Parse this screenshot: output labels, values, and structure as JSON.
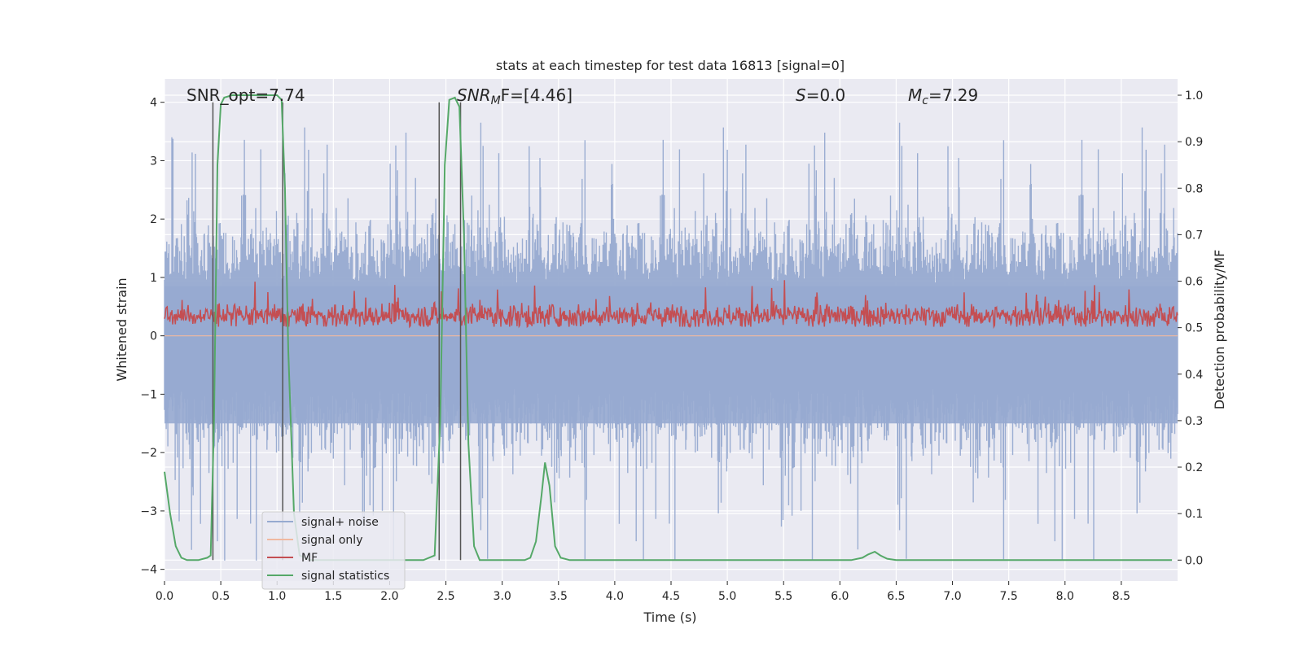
{
  "chart_data": {
    "type": "line",
    "title": "stats at each timestep for test data 16813 [signal=0]",
    "xlabel": "Time (s)",
    "ylabel": "Whitened strain",
    "ylabel_right": "Detection probability/MF",
    "xlim": [
      0,
      9.0
    ],
    "ylim": [
      -4.2,
      4.4
    ],
    "ylim_right": [
      -0.045,
      1.035
    ],
    "x_ticks": [
      "0.0",
      "0.5",
      "1.0",
      "1.5",
      "2.0",
      "2.5",
      "3.0",
      "3.5",
      "4.0",
      "4.5",
      "5.0",
      "5.5",
      "6.0",
      "6.5",
      "7.0",
      "7.5",
      "8.0",
      "8.5"
    ],
    "y_ticks": [
      "4",
      "3",
      "2",
      "1",
      "0",
      "−1",
      "−2",
      "−3",
      "−4"
    ],
    "y_ticks_right": [
      "1.0",
      "0.9",
      "0.8",
      "0.7",
      "0.6",
      "0.5",
      "0.4",
      "0.3",
      "0.2",
      "0.1",
      "0.0"
    ],
    "grid": true,
    "background": "#eaeaf2",
    "legend_position": "lower-left",
    "annotations": {
      "snr_opt": "SNR_opt=7.74",
      "snr_mf_base": "SNR",
      "snr_mf_sub": "M",
      "snr_mf_rest": "F=[4.46]",
      "s_var": "S",
      "s_rest": "=0.0",
      "mc_var": "M",
      "mc_sub": "c",
      "mc_rest": "=7.29"
    },
    "vertical_lines_x": [
      0.43,
      1.05,
      2.44,
      2.63
    ],
    "series": [
      {
        "name": "signal+ noise",
        "color": "#97aad0",
        "description_values": "noise band roughly -2.5..2.5, peaks up to ~3.6 and down to ~-3.9",
        "envelope": {
          "upper_typical": 1.6,
          "upper_max": 3.65,
          "lower_typical": -1.6,
          "lower_min": -3.85
        }
      },
      {
        "name": "signal only",
        "color": "#f0b8a0",
        "values_constant": 0.0
      },
      {
        "name": "MF",
        "color": "#c44e52",
        "axis": "right",
        "range": [
          0.5,
          0.6
        ],
        "peak": 0.62
      },
      {
        "name": "signal statistics",
        "color": "#55a868",
        "axis": "right",
        "x": [
          0.0,
          0.05,
          0.1,
          0.15,
          0.2,
          0.3,
          0.38,
          0.41,
          0.44,
          0.47,
          0.5,
          0.53,
          0.6,
          0.8,
          1.0,
          1.04,
          1.07,
          1.1,
          1.15,
          1.2,
          1.3,
          1.5,
          2.0,
          2.3,
          2.4,
          2.45,
          2.49,
          2.53,
          2.58,
          2.62,
          2.66,
          2.7,
          2.75,
          2.8,
          3.0,
          3.2,
          3.25,
          3.3,
          3.35,
          3.38,
          3.42,
          3.47,
          3.52,
          3.6,
          3.8,
          4.5,
          5.5,
          6.1,
          6.2,
          6.25,
          6.31,
          6.36,
          6.42,
          6.5,
          6.6,
          7.5,
          8.5,
          8.95
        ],
        "values": [
          0.19,
          0.1,
          0.03,
          0.005,
          0.0,
          0.0,
          0.005,
          0.01,
          0.3,
          0.85,
          0.98,
          0.995,
          1.0,
          1.0,
          1.0,
          0.99,
          0.8,
          0.45,
          0.1,
          0.01,
          0.0,
          0.0,
          0.0,
          0.0,
          0.01,
          0.3,
          0.85,
          0.99,
          0.995,
          0.975,
          0.7,
          0.25,
          0.03,
          0.0,
          0.0,
          0.0,
          0.005,
          0.04,
          0.14,
          0.21,
          0.16,
          0.03,
          0.005,
          0.0,
          0.0,
          0.0,
          0.0,
          0.0,
          0.005,
          0.012,
          0.018,
          0.01,
          0.003,
          0.0,
          0.0,
          0.0,
          0.0,
          0.0
        ]
      }
    ]
  }
}
